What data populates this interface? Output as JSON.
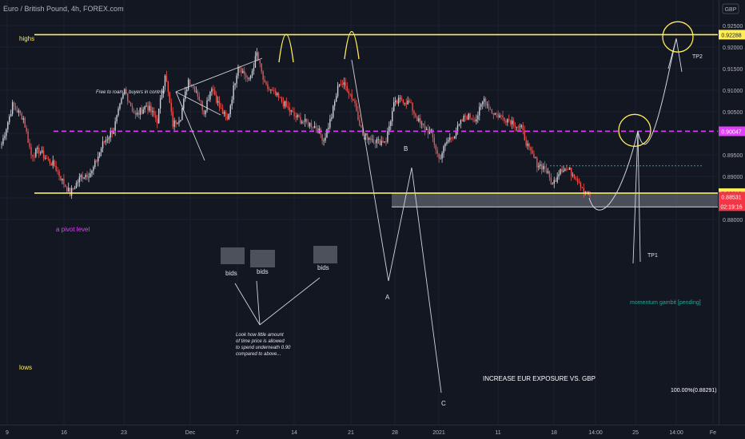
{
  "header": {
    "title": "Euro / British Pound, 4h, FOREX.com",
    "currency": "GBP"
  },
  "chart_data": {
    "type": "candlestick",
    "symbol": "EURGBP",
    "timeframe": "4h",
    "ylim": [
      0.88,
      0.9265
    ],
    "price_ticks": [
      "0.92500",
      "0.92000",
      "0.91500",
      "0.91000",
      "0.90500",
      "0.90000",
      "0.89500",
      "0.89000",
      "0.88500",
      "0.88000"
    ],
    "time_ticks": [
      "9",
      "16",
      "23",
      "Dec",
      "7",
      "14",
      "21",
      "28",
      "2021",
      "11",
      "18",
      "14:00",
      "25",
      "14:00",
      "Fe"
    ],
    "levels": [
      {
        "label": "highs",
        "price": 0.92288,
        "price_label": "0.92288",
        "color": "#ffee58"
      },
      {
        "label": "a pivot level",
        "price": 0.90047,
        "price_label": "0.90047",
        "color": "#e040fb"
      },
      {
        "label": "lows",
        "price": 0.88612,
        "price_label": "0.88612",
        "color": "#ffee58"
      }
    ],
    "current_price": {
      "price": 0.88531,
      "label": "0.88531",
      "countdown": "02:19:16",
      "color": "#f23645"
    },
    "target_zone": {
      "top": 0.88612,
      "bottom": 0.88291,
      "label": "INCREASE EUR EXPOSURE VS. GBP",
      "fib_label": "100.00%(0.88291)"
    },
    "momentum_line": {
      "price": 0.89245,
      "label": "momentum gambit [pending]",
      "color": "#26a69a"
    },
    "path_anchors": [
      [
        0.8975,
        0.9065,
        0.9035
      ],
      [
        0.9035,
        0.895,
        0.896,
        0.894
      ],
      [
        0.894,
        0.8925,
        0.889,
        0.886
      ],
      [
        0.886,
        0.89,
        0.891
      ],
      [
        0.891,
        0.8975,
        0.901
      ],
      [
        0.901,
        0.91,
        0.904
      ],
      [
        0.904,
        0.9065,
        0.903
      ],
      [
        0.903,
        0.914,
        0.902,
        0.904
      ],
      [
        0.904,
        0.9125,
        0.91,
        0.905
      ],
      [
        0.905,
        0.911,
        0.906,
        0.903
      ],
      [
        0.903,
        0.916,
        0.912
      ],
      [
        0.912,
        0.9185,
        0.911,
        0.9095
      ],
      [
        0.9095,
        0.907,
        0.904
      ],
      [
        0.904,
        0.9025,
        0.9015
      ],
      [
        0.9015,
        0.8985,
        0.904,
        0.912
      ],
      [
        0.912,
        0.9105,
        0.907,
        0.8995
      ],
      [
        0.8995,
        0.899,
        0.898,
        0.8985
      ],
      [
        0.8985,
        0.9065,
        0.908,
        0.907
      ],
      [
        0.907,
        0.902,
        0.9
      ],
      [
        0.9,
        0.894,
        0.898,
        0.9
      ],
      [
        0.9,
        0.904,
        0.9035
      ],
      [
        0.9035,
        0.908,
        0.905,
        0.904
      ],
      [
        0.904,
        0.903,
        0.901
      ],
      [
        0.901,
        0.896,
        0.893,
        0.892
      ],
      [
        0.892,
        0.888,
        0.892,
        0.8915
      ],
      [
        0.8915,
        0.89,
        0.887,
        0.885
      ]
    ],
    "projection": {
      "start_price": 0.885,
      "tp1_price": 0.9005,
      "tp2_price": 0.922
    },
    "annotations": {
      "free_to_roam": "Free to roam... buyers in control!",
      "bids": [
        "bids",
        "bids",
        "bids"
      ],
      "look_note": [
        "Look how little amount",
        "of time price is allowed",
        "to spend underneath 0.90",
        "compared to above..."
      ],
      "points": [
        "A",
        "B",
        "C"
      ],
      "tp1": "TP1",
      "tp2": "TP2"
    },
    "colors": {
      "up": "#d1d4dc",
      "down": "#ef5350",
      "background": "#131722",
      "text": "#b2b5be"
    }
  }
}
